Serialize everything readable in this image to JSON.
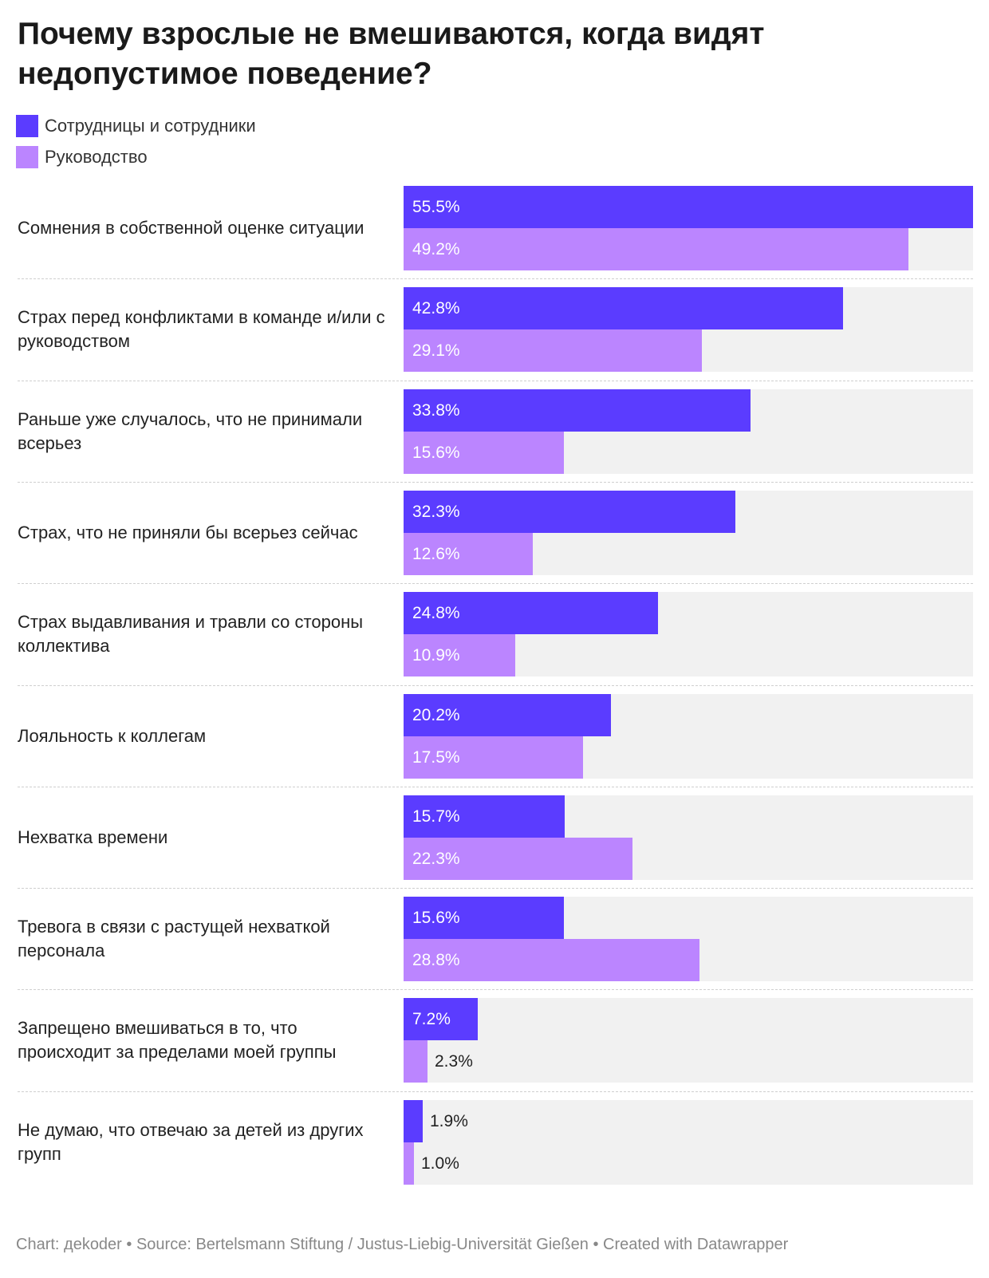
{
  "colors": {
    "staff": "#5b3cff",
    "management": "#bb85ff",
    "track": "#f1f1f1"
  },
  "chart_data": {
    "type": "bar",
    "orientation": "horizontal",
    "title": "Почему взрослые не вмешиваются, когда видят недопустимое поведение?",
    "legend_position": "top-left",
    "xlim": [
      0,
      55.5
    ],
    "categories": [
      "Сомнения в собственной оценке ситуации",
      "Страх перед конфликтами в команде и/или с руководством",
      "Раньше уже случалось, что не принимали всерьез",
      "Страх, что не приняли бы всерьез сейчас",
      "Страх выдавливания и травли со стороны коллектива",
      "Лояльность к коллегам",
      "Нехватка времени",
      "Тревога в связи с растущей нехваткой персонала",
      "Запрещено вмешиваться в то, что происходит за пределами моей группы",
      "Не думаю, что отвечаю за детей из других групп"
    ],
    "series": [
      {
        "name": "Сотрудницы и сотрудники",
        "values": [
          55.5,
          42.8,
          33.8,
          32.3,
          24.8,
          20.2,
          15.7,
          15.6,
          7.2,
          1.9
        ]
      },
      {
        "name": "Руководство",
        "values": [
          49.2,
          29.1,
          15.6,
          12.6,
          10.9,
          17.5,
          22.3,
          28.8,
          2.3,
          1.0
        ]
      }
    ],
    "value_labels": [
      [
        "55.5%",
        "42.8%",
        "33.8%",
        "32.3%",
        "24.8%",
        "20.2%",
        "15.7%",
        "15.6%",
        "7.2%",
        "1.9%"
      ],
      [
        "49.2%",
        "29.1%",
        "15.6%",
        "12.6%",
        "10.9%",
        "17.5%",
        "22.3%",
        "28.8%",
        "2.3%",
        "1.0%"
      ]
    ],
    "footer": "Chart: дekoder • Source: Bertelsmann Stiftung / Justus-Liebig-Universität Gießen • Created with Datawrapper"
  }
}
